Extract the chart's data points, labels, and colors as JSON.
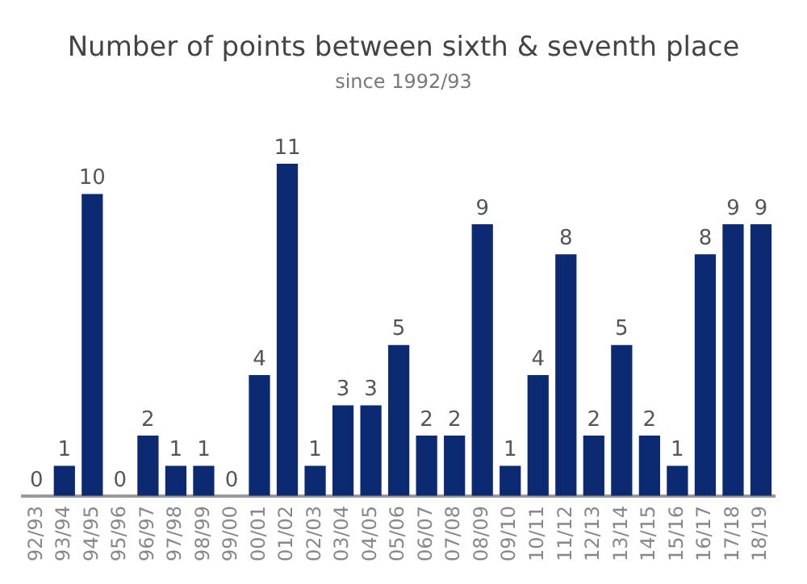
{
  "chart_data": {
    "type": "bar",
    "title": "Number of points between sixth & seventh place",
    "subtitle": "since 1992/93",
    "categories": [
      "92/93",
      "93/94",
      "94/95",
      "95/96",
      "96/97",
      "97/98",
      "98/99",
      "99/00",
      "00/01",
      "01/02",
      "02/03",
      "03/04",
      "04/05",
      "05/06",
      "06/07",
      "07/08",
      "08/09",
      "09/10",
      "10/11",
      "11/12",
      "12/13",
      "13/14",
      "14/15",
      "15/16",
      "16/17",
      "17/18",
      "18/19"
    ],
    "values": [
      0,
      1,
      10,
      0,
      2,
      1,
      1,
      0,
      4,
      11,
      1,
      3,
      3,
      5,
      2,
      2,
      9,
      1,
      4,
      8,
      2,
      5,
      2,
      1,
      8,
      9,
      9
    ],
    "color": "#0c2a72",
    "data_labels": true,
    "grid": false,
    "legend": false
  }
}
